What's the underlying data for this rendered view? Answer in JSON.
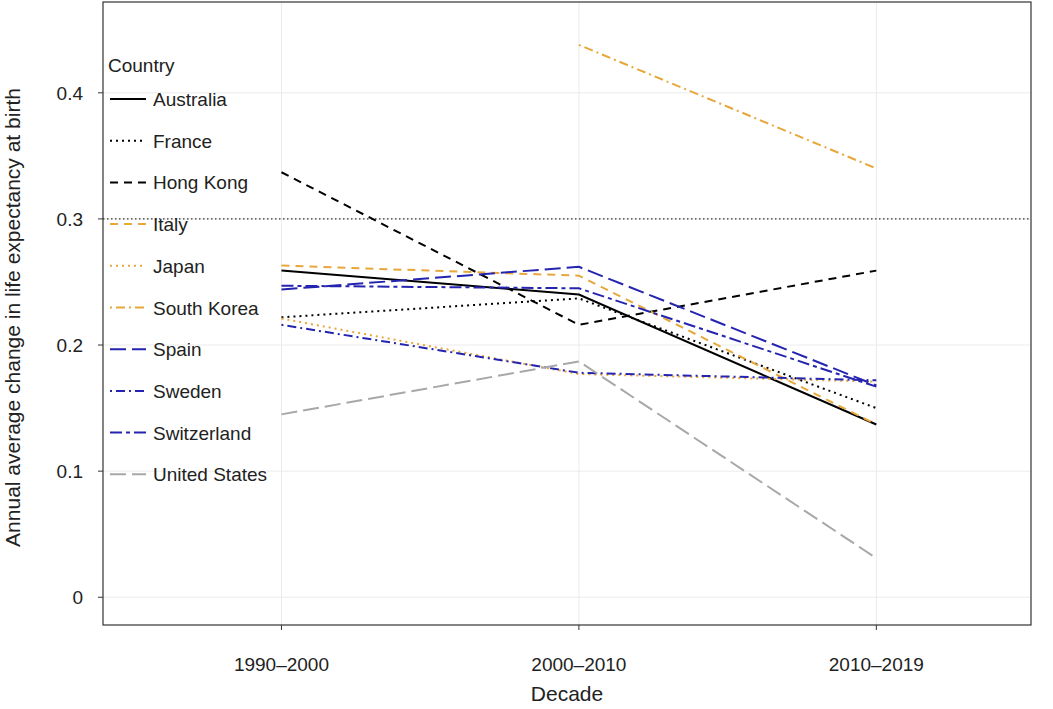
{
  "chart_data": {
    "type": "line",
    "x_label": "Decade",
    "y_label": "Annual average change in life expectancy at birth",
    "categories": [
      "1990–2000",
      "2000–2010",
      "2010–2019"
    ],
    "ylim": [
      -0.022,
      0.472
    ],
    "yticks": [
      0,
      0.1,
      0.2,
      0.3,
      0.4
    ],
    "hline": 0.3,
    "grid": true,
    "legend": "top-left",
    "legend_title": "Country",
    "series": [
      {
        "name": "Australia",
        "color": "#000000",
        "line_style": "solid",
        "values": [
          0.259,
          0.24,
          0.137
        ]
      },
      {
        "name": "France",
        "color": "#000000",
        "line_style": "dotted",
        "values": [
          0.222,
          0.237,
          0.15
        ]
      },
      {
        "name": "Hong Kong",
        "color": "#000000",
        "line_style": "dashed",
        "values": [
          0.337,
          0.216,
          0.259
        ]
      },
      {
        "name": "Italy",
        "color": "#e8a73a",
        "line_style": "dashed",
        "values": [
          0.263,
          0.255,
          0.137
        ]
      },
      {
        "name": "Japan",
        "color": "#e8a73a",
        "line_style": "dotted",
        "values": [
          0.221,
          0.177,
          0.171
        ]
      },
      {
        "name": "South Korea",
        "color": "#e8a73a",
        "line_style": "dotdash",
        "values": [
          null,
          0.438,
          0.34
        ]
      },
      {
        "name": "Spain",
        "color": "#2424b0",
        "line_style": "longdash",
        "values": [
          0.244,
          0.262,
          0.168
        ]
      },
      {
        "name": "Sweden",
        "color": "#2424b0",
        "line_style": "dotdash",
        "values": [
          0.216,
          0.178,
          0.172
        ]
      },
      {
        "name": "Switzerland",
        "color": "#2424b0",
        "line_style": "twodash",
        "values": [
          0.247,
          0.245,
          0.167
        ]
      },
      {
        "name": "United States",
        "color": "#a8a8a8",
        "line_style": "longdash",
        "values": [
          0.145,
          0.187,
          0.031
        ]
      }
    ]
  }
}
